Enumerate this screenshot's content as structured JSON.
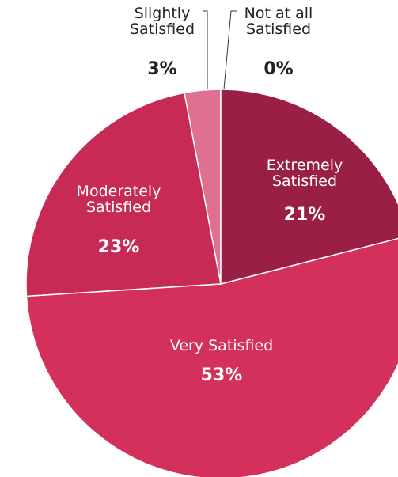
{
  "chart_data": {
    "type": "pie",
    "categories": [
      "Extremely Satisfied",
      "Very Satisfied",
      "Moderately Satisfied",
      "Slightly Satisfied",
      "Not at all Satisfied"
    ],
    "values": [
      21,
      53,
      23,
      3,
      0
    ],
    "value_labels": [
      "21%",
      "53%",
      "23%",
      "3%",
      "0%"
    ],
    "colors": [
      "#9a1f45",
      "#d4305c",
      "#c72a55",
      "#e0708f",
      "#f0a3b7"
    ]
  }
}
